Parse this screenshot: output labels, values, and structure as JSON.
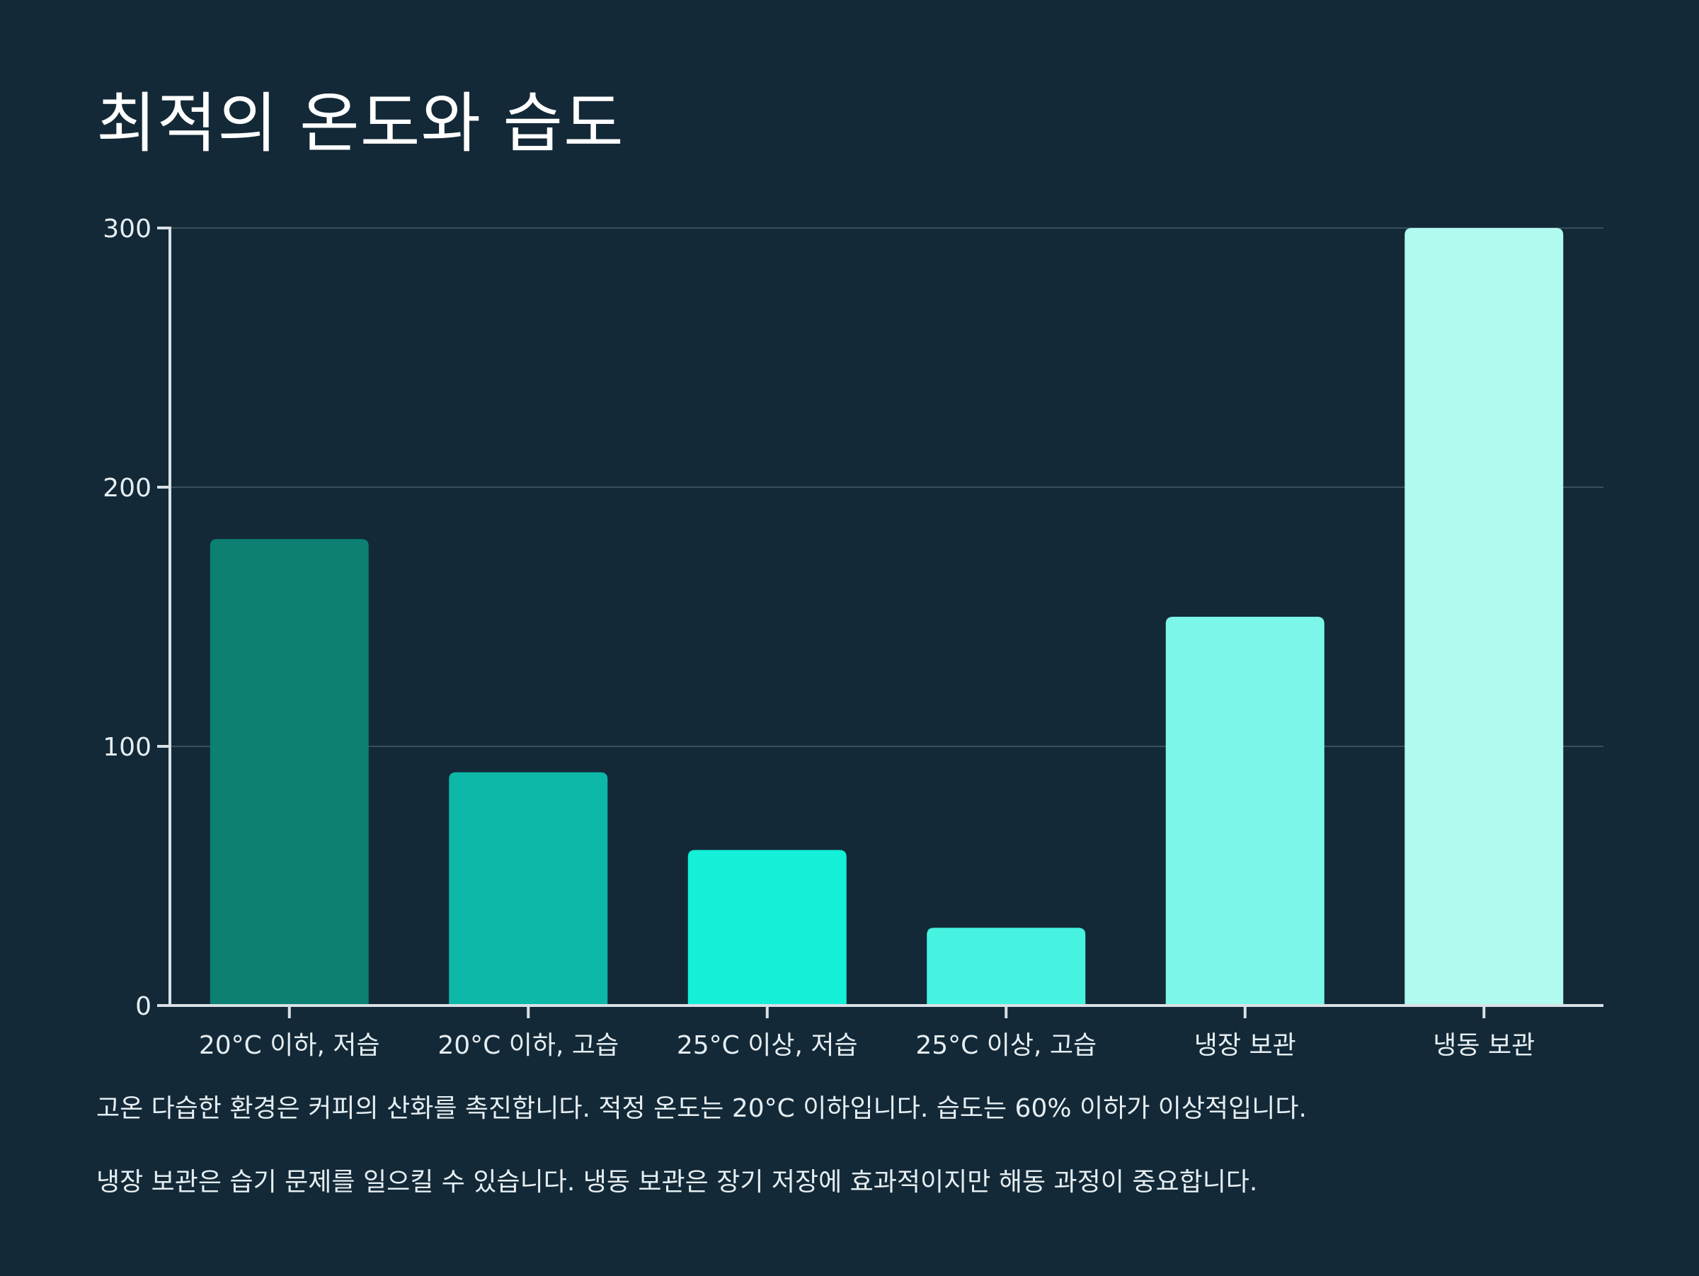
{
  "chart_data": {
    "type": "bar",
    "title": "최적의 온도와 습도",
    "xlabel": "",
    "ylabel": "",
    "ylim": [
      0,
      300
    ],
    "yticks": [
      0,
      100,
      200,
      300
    ],
    "categories": [
      "20°C 이하, 저습",
      "20°C 이하, 고습",
      "25°C 이상, 저습",
      "25°C 이상, 고습",
      "냉장 보관",
      "냉동 보관"
    ],
    "values": [
      180,
      90,
      60,
      30,
      150,
      300
    ],
    "colors": [
      "#0b8073",
      "#0db8a8",
      "#14efd8",
      "#46f2e0",
      "#7bf6e8",
      "#b0faf0"
    ],
    "grid": true,
    "legend": false
  },
  "notes": [
    "고온 다습한 환경은 커피의 산화를 촉진합니다. 적정 온도는 20°C 이하입니다. 습도는 60% 이하가 이상적입니다.",
    "냉장 보관은 습기 문제를 일으킬 수 있습니다. 냉동 보관은 장기 저장에 효과적이지만 해동 과정이 중요합니다."
  ]
}
